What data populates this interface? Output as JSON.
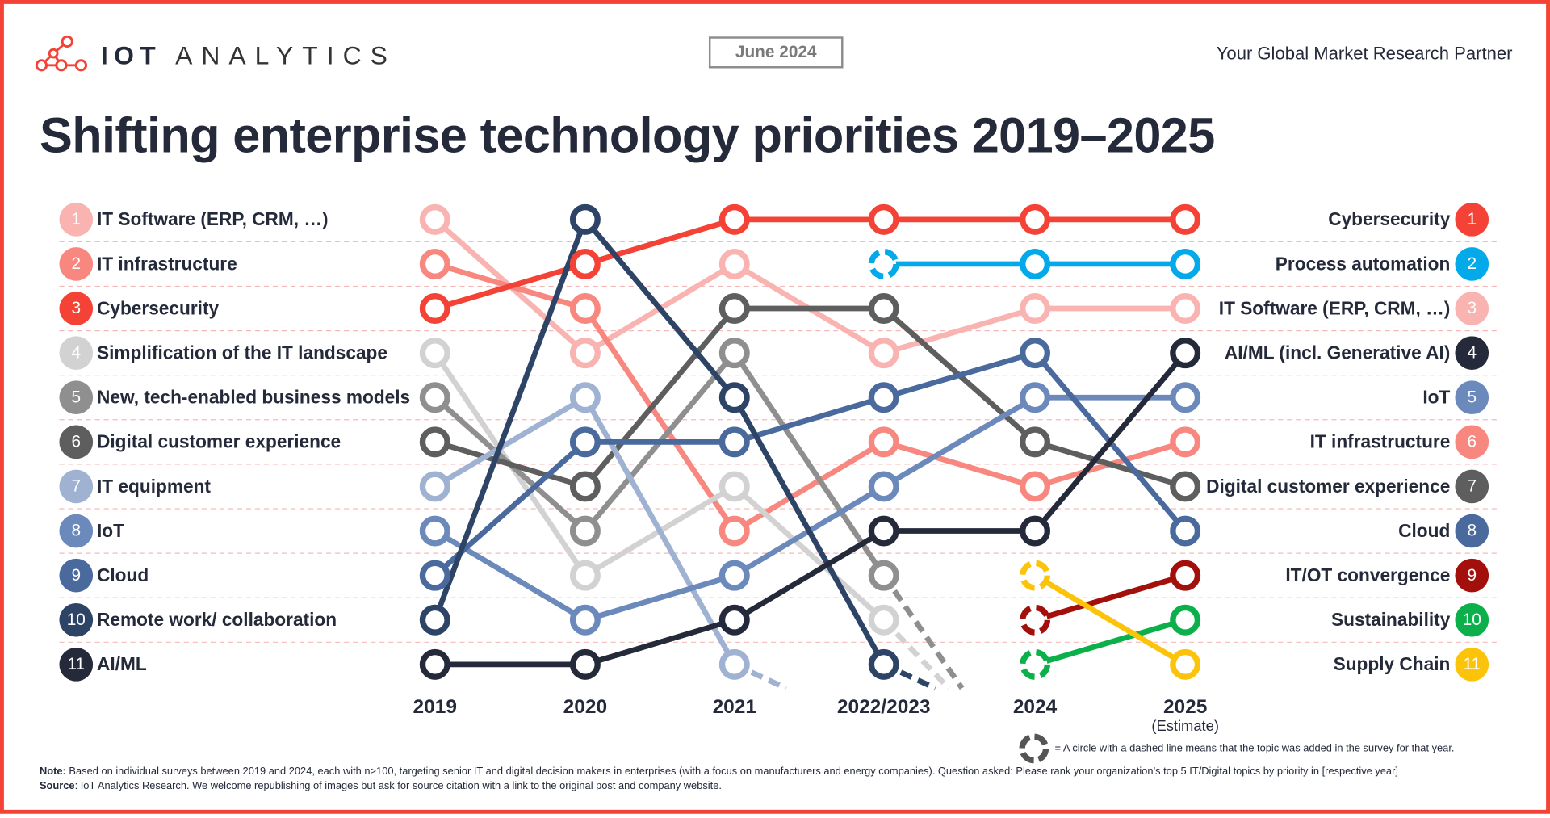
{
  "header": {
    "logo_text_bold": "IOT",
    "logo_text_light": "ANALYTICS",
    "date": "June 2024",
    "tagline": "Your Global Market Research Partner"
  },
  "chart_data": {
    "type": "line",
    "subtype": "bump (rank) chart",
    "title": "Shifting enterprise technology priorities 2019–2025",
    "x": [
      "2019",
      "2020",
      "2021",
      "2022/2023",
      "2024",
      "2025"
    ],
    "x_sublabels": [
      "",
      "",
      "",
      "",
      "",
      "(Estimate)"
    ],
    "y_axis": "rank",
    "ylim": [
      1,
      11
    ],
    "y_inverted": true,
    "grid": "dashed horizontal row separators",
    "series": [
      {
        "name": "IT Software (ERP, CRM, …)",
        "color": "#f9b4b1",
        "ranks": [
          1,
          4,
          2,
          4,
          3,
          3
        ],
        "dropped": false,
        "added_at": null
      },
      {
        "name": "IT infrastructure",
        "color": "#f7877f",
        "ranks": [
          2,
          3,
          8,
          6,
          7,
          6
        ],
        "dropped": false,
        "added_at": null
      },
      {
        "name": "Cybersecurity",
        "color": "#f44336",
        "ranks": [
          3,
          2,
          1,
          1,
          1,
          1
        ],
        "dropped": false,
        "added_at": null
      },
      {
        "name": "Simplification of the IT landscape",
        "color": "#d2d2d2",
        "ranks": [
          4,
          9,
          7,
          10,
          null,
          null
        ],
        "dropped": true,
        "added_at": null
      },
      {
        "name": "New, tech-enabled business models",
        "color": "#8f8f8f",
        "ranks": [
          5,
          8,
          4,
          9,
          null,
          null
        ],
        "dropped": true,
        "added_at": null
      },
      {
        "name": "Digital customer experience",
        "color": "#5e5e5e",
        "ranks": [
          6,
          7,
          3,
          3,
          6,
          7
        ],
        "dropped": false,
        "added_at": null
      },
      {
        "name": "IT equipment",
        "color": "#9fb2d2",
        "ranks": [
          7,
          5,
          11,
          null,
          null,
          null
        ],
        "dropped": true,
        "added_at": null
      },
      {
        "name": "IoT",
        "color": "#6b89bb",
        "ranks": [
          8,
          10,
          9,
          7,
          5,
          5
        ],
        "dropped": false,
        "added_at": null
      },
      {
        "name": "Cloud",
        "color": "#4a6a9d",
        "ranks": [
          9,
          6,
          6,
          5,
          4,
          8
        ],
        "dropped": false,
        "added_at": null
      },
      {
        "name": "Remote work/ collaboration",
        "color": "#2d4467",
        "ranks": [
          10,
          1,
          5,
          11,
          null,
          null
        ],
        "dropped": true,
        "added_at": null
      },
      {
        "name": "AI/ML",
        "color": "#252a3a",
        "ranks": [
          11,
          11,
          10,
          8,
          8,
          4
        ],
        "dropped": false,
        "added_at": null
      },
      {
        "name": "Process automation",
        "color": "#03a9e8",
        "ranks": [
          null,
          null,
          null,
          2,
          2,
          2
        ],
        "dropped": false,
        "added_at": "2022/2023"
      },
      {
        "name": "IT/OT convergence",
        "color": "#a30f0a",
        "ranks": [
          null,
          null,
          null,
          null,
          10,
          9
        ],
        "dropped": false,
        "added_at": "2024"
      },
      {
        "name": "Sustainability",
        "color": "#0bb04b",
        "ranks": [
          null,
          null,
          null,
          null,
          11,
          10
        ],
        "dropped": false,
        "added_at": "2024"
      },
      {
        "name": "Supply Chain",
        "color": "#fcc30b",
        "ranks": [
          null,
          null,
          null,
          null,
          9,
          11
        ],
        "dropped": false,
        "added_at": "2024"
      }
    ],
    "left_labels": [
      {
        "rank": "1",
        "text": "IT Software (ERP, CRM, …)",
        "color": "#f9b4b1"
      },
      {
        "rank": "2",
        "text": "IT infrastructure",
        "color": "#f7877f"
      },
      {
        "rank": "3",
        "text": "Cybersecurity",
        "color": "#f44336"
      },
      {
        "rank": "4",
        "text": "Simplification of the IT landscape",
        "color": "#d2d2d2"
      },
      {
        "rank": "5",
        "text": "New, tech-enabled business models",
        "color": "#8f8f8f"
      },
      {
        "rank": "6",
        "text": "Digital customer experience",
        "color": "#5e5e5e"
      },
      {
        "rank": "7",
        "text": "IT equipment",
        "color": "#9fb2d2"
      },
      {
        "rank": "8",
        "text": "IoT",
        "color": "#6b89bb"
      },
      {
        "rank": "9",
        "text": "Cloud",
        "color": "#4a6a9d"
      },
      {
        "rank": "10",
        "text": "Remote work/ collaboration",
        "color": "#2d4467"
      },
      {
        "rank": "11",
        "text": "AI/ML",
        "color": "#252a3a"
      }
    ],
    "right_labels": [
      {
        "rank": "1",
        "text": "Cybersecurity",
        "color": "#f44336"
      },
      {
        "rank": "2",
        "text": "Process automation",
        "color": "#03a9e8"
      },
      {
        "rank": "3",
        "text": "IT Software (ERP, CRM, …)",
        "color": "#f9b4b1"
      },
      {
        "rank": "4",
        "text": "AI/ML (incl. Generative AI)",
        "color": "#252a3a"
      },
      {
        "rank": "5",
        "text": "IoT",
        "color": "#6b89bb"
      },
      {
        "rank": "6",
        "text": "IT infrastructure",
        "color": "#f7877f"
      },
      {
        "rank": "7",
        "text": "Digital customer experience",
        "color": "#5e5e5e"
      },
      {
        "rank": "8",
        "text": "Cloud",
        "color": "#4a6a9d"
      },
      {
        "rank": "9",
        "text": "IT/OT convergence",
        "color": "#a30f0a"
      },
      {
        "rank": "10",
        "text": "Sustainability",
        "color": "#0bb04b"
      },
      {
        "rank": "11",
        "text": "Supply Chain",
        "color": "#fcc30b"
      }
    ]
  },
  "legend": {
    "dashed_circle_note": "= A circle with a dashed line means that the topic was added in the survey for that year."
  },
  "footer": {
    "note_label": "Note:",
    "note_text": " Based on individual surveys between 2019 and 2024, each with n>100, targeting senior IT and digital decision makers in enterprises (with a focus on manufacturers and energy companies). Question asked: Please rank your organization’s top 5 IT/Digital topics by priority in [respective year]",
    "source_label": "Source",
    "source_text": ": IoT Analytics Research. We welcome republishing of images but ask for source citation with a link to the original post and company website."
  },
  "colors": {
    "border": "#f44336",
    "text": "#252a3a"
  }
}
